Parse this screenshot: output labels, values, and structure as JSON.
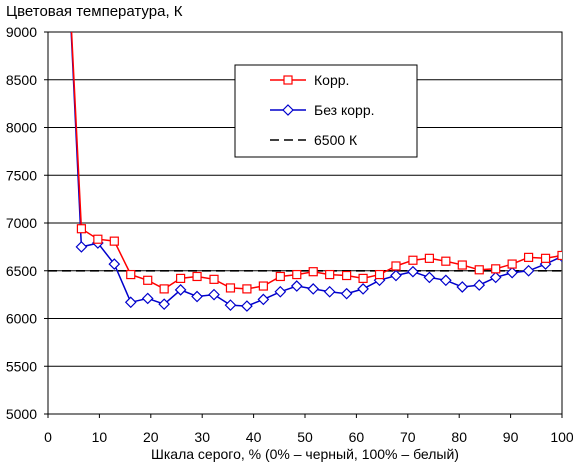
{
  "chart_data": {
    "type": "line",
    "title": "Цветовая температура, К",
    "xlabel": "Шкала серого, % (0% – черный, 100% – белый)",
    "ylabel": "",
    "xlim": [
      0,
      100
    ],
    "ylim": [
      5000,
      9000
    ],
    "xticks": [
      0,
      10,
      20,
      30,
      40,
      50,
      60,
      70,
      80,
      90,
      100
    ],
    "yticks": [
      5000,
      5500,
      6000,
      6500,
      7000,
      7500,
      8000,
      8500,
      9000
    ],
    "grid": "horizontal",
    "legend_position": "top-center",
    "series": [
      {
        "name": "Корр.",
        "color": "#ff0000",
        "marker": "square",
        "x": [
          3.2,
          6.5,
          9.7,
          12.9,
          16.1,
          19.4,
          22.6,
          25.8,
          29.0,
          32.3,
          35.5,
          38.7,
          41.9,
          45.2,
          48.4,
          51.6,
          54.8,
          58.1,
          61.3,
          64.5,
          67.7,
          71.0,
          74.2,
          77.4,
          80.6,
          83.9,
          87.1,
          90.3,
          93.5,
          96.8,
          100
        ],
        "y": [
          10500,
          6940,
          6830,
          6810,
          6460,
          6400,
          6310,
          6420,
          6440,
          6410,
          6320,
          6310,
          6340,
          6440,
          6460,
          6490,
          6460,
          6450,
          6420,
          6460,
          6550,
          6610,
          6630,
          6600,
          6560,
          6510,
          6520,
          6570,
          6640,
          6630,
          6660
        ]
      },
      {
        "name": "Без корр.",
        "color": "#0000cc",
        "marker": "diamond",
        "x": [
          3.2,
          6.5,
          9.7,
          12.9,
          16.1,
          19.4,
          22.6,
          25.8,
          29.0,
          32.3,
          35.5,
          38.7,
          41.9,
          45.2,
          48.4,
          51.6,
          54.8,
          58.1,
          61.3,
          64.5,
          67.7,
          71.0,
          74.2,
          77.4,
          80.6,
          83.9,
          87.1,
          90.3,
          93.5,
          96.8,
          100
        ],
        "y": [
          10500,
          6750,
          6790,
          6570,
          6170,
          6210,
          6150,
          6300,
          6230,
          6250,
          6140,
          6130,
          6200,
          6280,
          6340,
          6310,
          6280,
          6260,
          6310,
          6400,
          6450,
          6490,
          6430,
          6400,
          6330,
          6350,
          6430,
          6480,
          6500,
          6570,
          6650
        ]
      },
      {
        "name": "6500 К",
        "color": "#000000",
        "style": "dashed",
        "x": [
          0,
          100
        ],
        "y": [
          6500,
          6500
        ]
      }
    ]
  }
}
